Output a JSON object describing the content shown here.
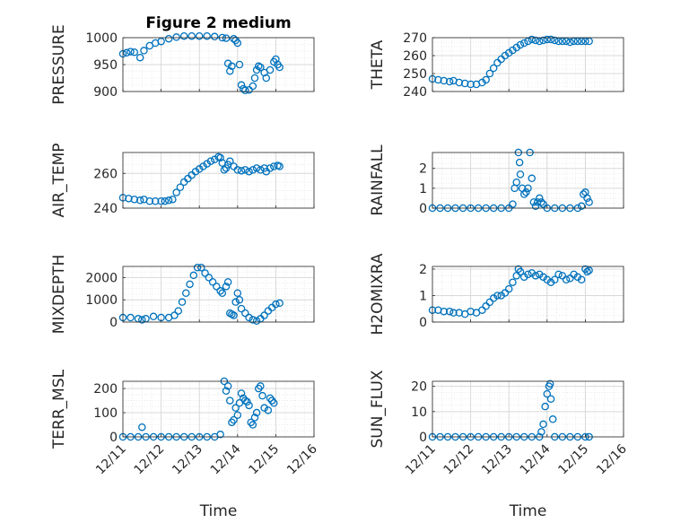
{
  "colors": {
    "marker": "#0072bd",
    "grid": "#d9d9d9",
    "axis": "#262626",
    "background": "#ffffff"
  },
  "chart_data": [
    {
      "id": "pressure",
      "type": "scatter",
      "title": "Figure 2 medium",
      "ylabel": "PRESSURE",
      "xlabel": "",
      "xlim": [
        "12/11",
        "12/16"
      ],
      "xticks": [
        "12/11",
        "12/12",
        "12/13",
        "12/14",
        "12/15",
        "12/16"
      ],
      "ylim": [
        900,
        1000
      ],
      "yticks": [
        900,
        950,
        1000
      ],
      "grid": true,
      "minor_grid": true,
      "points": [
        [
          0.0,
          970
        ],
        [
          0.1,
          972
        ],
        [
          0.2,
          974
        ],
        [
          0.3,
          973
        ],
        [
          0.45,
          963
        ],
        [
          0.55,
          976
        ],
        [
          0.7,
          985
        ],
        [
          0.85,
          990
        ],
        [
          1.0,
          993
        ],
        [
          1.2,
          998
        ],
        [
          1.4,
          1001
        ],
        [
          1.6,
          1003
        ],
        [
          1.8,
          1003
        ],
        [
          2.0,
          1003
        ],
        [
          2.2,
          1003
        ],
        [
          2.4,
          1002
        ],
        [
          2.6,
          1000
        ],
        [
          2.7,
          999
        ],
        [
          2.75,
          952
        ],
        [
          2.8,
          938
        ],
        [
          2.85,
          947
        ],
        [
          2.9,
          998
        ],
        [
          2.95,
          995
        ],
        [
          3.0,
          990
        ],
        [
          3.05,
          950
        ],
        [
          3.1,
          912
        ],
        [
          3.15,
          905
        ],
        [
          3.2,
          902
        ],
        [
          3.3,
          903
        ],
        [
          3.4,
          910
        ],
        [
          3.45,
          925
        ],
        [
          3.5,
          940
        ],
        [
          3.55,
          947
        ],
        [
          3.6,
          945
        ],
        [
          3.7,
          935
        ],
        [
          3.75,
          925
        ],
        [
          3.85,
          940
        ],
        [
          3.95,
          955
        ],
        [
          4.0,
          960
        ],
        [
          4.05,
          950
        ],
        [
          4.1,
          945
        ]
      ]
    },
    {
      "id": "theta",
      "type": "scatter",
      "ylabel": "THETA",
      "xlabel": "",
      "xlim": [
        "12/11",
        "12/16"
      ],
      "xticks": [
        "12/11",
        "12/12",
        "12/13",
        "12/14",
        "12/15",
        "12/16"
      ],
      "ylim": [
        240,
        270
      ],
      "yticks": [
        240,
        250,
        260,
        270
      ],
      "grid": true,
      "minor_grid": true,
      "points": [
        [
          0.0,
          247
        ],
        [
          0.15,
          246.5
        ],
        [
          0.3,
          246
        ],
        [
          0.45,
          245.5
        ],
        [
          0.55,
          246
        ],
        [
          0.7,
          245
        ],
        [
          0.85,
          244.5
        ],
        [
          1.0,
          244
        ],
        [
          1.15,
          244
        ],
        [
          1.3,
          245
        ],
        [
          1.4,
          246.5
        ],
        [
          1.5,
          250
        ],
        [
          1.6,
          253
        ],
        [
          1.7,
          256
        ],
        [
          1.8,
          258
        ],
        [
          1.9,
          260
        ],
        [
          2.0,
          261.5
        ],
        [
          2.1,
          263
        ],
        [
          2.2,
          264.5
        ],
        [
          2.3,
          266
        ],
        [
          2.4,
          267
        ],
        [
          2.5,
          268
        ],
        [
          2.6,
          269
        ],
        [
          2.7,
          268.5
        ],
        [
          2.8,
          268
        ],
        [
          2.9,
          268.5
        ],
        [
          3.0,
          269
        ],
        [
          3.1,
          269
        ],
        [
          3.2,
          268.5
        ],
        [
          3.3,
          268
        ],
        [
          3.4,
          268
        ],
        [
          3.5,
          268
        ],
        [
          3.6,
          267.5
        ],
        [
          3.7,
          268
        ],
        [
          3.8,
          268
        ],
        [
          3.9,
          268
        ],
        [
          4.0,
          268
        ],
        [
          4.1,
          268
        ]
      ]
    },
    {
      "id": "air_temp",
      "type": "scatter",
      "ylabel": "AIR_TEMP",
      "xlabel": "",
      "xlim": [
        "12/11",
        "12/16"
      ],
      "xticks": [
        "12/11",
        "12/12",
        "12/13",
        "12/14",
        "12/15",
        "12/16"
      ],
      "ylim": [
        240,
        272
      ],
      "yticks": [
        240,
        260
      ],
      "grid": true,
      "minor_grid": true,
      "points": [
        [
          0.0,
          246
        ],
        [
          0.15,
          245.5
        ],
        [
          0.3,
          245
        ],
        [
          0.45,
          244.5
        ],
        [
          0.55,
          245
        ],
        [
          0.7,
          244
        ],
        [
          0.85,
          244
        ],
        [
          1.0,
          244
        ],
        [
          1.1,
          244
        ],
        [
          1.2,
          244.5
        ],
        [
          1.3,
          245
        ],
        [
          1.4,
          249
        ],
        [
          1.5,
          252
        ],
        [
          1.6,
          255
        ],
        [
          1.7,
          257
        ],
        [
          1.8,
          259
        ],
        [
          1.9,
          261
        ],
        [
          2.0,
          262.5
        ],
        [
          2.1,
          264
        ],
        [
          2.2,
          265.5
        ],
        [
          2.3,
          267
        ],
        [
          2.4,
          268
        ],
        [
          2.5,
          269.5
        ],
        [
          2.55,
          269
        ],
        [
          2.6,
          266
        ],
        [
          2.65,
          262
        ],
        [
          2.7,
          263
        ],
        [
          2.75,
          265
        ],
        [
          2.8,
          267
        ],
        [
          2.9,
          264
        ],
        [
          3.0,
          262
        ],
        [
          3.1,
          261.5
        ],
        [
          3.2,
          262
        ],
        [
          3.3,
          261
        ],
        [
          3.4,
          262
        ],
        [
          3.5,
          263
        ],
        [
          3.6,
          262
        ],
        [
          3.7,
          263
        ],
        [
          3.75,
          261
        ],
        [
          3.85,
          263
        ],
        [
          3.95,
          264
        ],
        [
          4.05,
          264.5
        ],
        [
          4.1,
          264
        ]
      ]
    },
    {
      "id": "rainfall",
      "type": "scatter",
      "ylabel": "RAINFALL",
      "xlabel": "",
      "xlim": [
        "12/11",
        "12/16"
      ],
      "xticks": [
        "12/11",
        "12/12",
        "12/13",
        "12/14",
        "12/15",
        "12/16"
      ],
      "ylim": [
        0,
        2.8
      ],
      "yticks": [
        0,
        1,
        2
      ],
      "grid": true,
      "minor_grid": true,
      "points": [
        [
          0.0,
          0
        ],
        [
          0.2,
          0
        ],
        [
          0.4,
          0
        ],
        [
          0.6,
          0
        ],
        [
          0.8,
          0
        ],
        [
          1.0,
          0
        ],
        [
          1.2,
          0
        ],
        [
          1.4,
          0
        ],
        [
          1.6,
          0
        ],
        [
          1.8,
          0
        ],
        [
          2.0,
          0
        ],
        [
          2.1,
          0.2
        ],
        [
          2.15,
          1.0
        ],
        [
          2.2,
          1.3
        ],
        [
          2.25,
          2.8
        ],
        [
          2.28,
          2.3
        ],
        [
          2.3,
          1.7
        ],
        [
          2.35,
          1.0
        ],
        [
          2.4,
          0.7
        ],
        [
          2.45,
          0.8
        ],
        [
          2.5,
          1.0
        ],
        [
          2.55,
          2.8
        ],
        [
          2.6,
          1.5
        ],
        [
          2.65,
          0.3
        ],
        [
          2.7,
          0.1
        ],
        [
          2.75,
          0.3
        ],
        [
          2.8,
          0.5
        ],
        [
          2.85,
          0.3
        ],
        [
          2.9,
          0.2
        ],
        [
          3.0,
          0
        ],
        [
          3.2,
          0
        ],
        [
          3.4,
          0
        ],
        [
          3.6,
          0
        ],
        [
          3.8,
          0
        ],
        [
          3.9,
          0.1
        ],
        [
          3.95,
          0.7
        ],
        [
          4.0,
          0.8
        ],
        [
          4.05,
          0.5
        ],
        [
          4.1,
          0.3
        ]
      ]
    },
    {
      "id": "mixdepth",
      "type": "scatter",
      "ylabel": "MIXDEPTH",
      "xlabel": "",
      "xlim": [
        "12/11",
        "12/16"
      ],
      "xticks": [
        "12/11",
        "12/12",
        "12/13",
        "12/14",
        "12/15",
        "12/16"
      ],
      "ylim": [
        0,
        2500
      ],
      "yticks": [
        0,
        1000,
        2000
      ],
      "grid": true,
      "minor_grid": true,
      "points": [
        [
          0.0,
          200
        ],
        [
          0.2,
          200
        ],
        [
          0.4,
          150
        ],
        [
          0.5,
          100
        ],
        [
          0.6,
          150
        ],
        [
          0.8,
          250
        ],
        [
          1.0,
          200
        ],
        [
          1.2,
          200
        ],
        [
          1.35,
          300
        ],
        [
          1.45,
          500
        ],
        [
          1.55,
          900
        ],
        [
          1.65,
          1300
        ],
        [
          1.75,
          1700
        ],
        [
          1.85,
          2100
        ],
        [
          1.95,
          2450
        ],
        [
          2.05,
          2450
        ],
        [
          2.15,
          2200
        ],
        [
          2.25,
          2000
        ],
        [
          2.35,
          1800
        ],
        [
          2.45,
          1600
        ],
        [
          2.55,
          1400
        ],
        [
          2.6,
          1300
        ],
        [
          2.7,
          1600
        ],
        [
          2.75,
          1800
        ],
        [
          2.8,
          400
        ],
        [
          2.85,
          350
        ],
        [
          2.9,
          300
        ],
        [
          2.95,
          900
        ],
        [
          3.0,
          1300
        ],
        [
          3.05,
          1000
        ],
        [
          3.1,
          600
        ],
        [
          3.2,
          400
        ],
        [
          3.3,
          200
        ],
        [
          3.4,
          100
        ],
        [
          3.5,
          50
        ],
        [
          3.6,
          150
        ],
        [
          3.7,
          300
        ],
        [
          3.8,
          500
        ],
        [
          3.9,
          650
        ],
        [
          4.0,
          800
        ],
        [
          4.1,
          850
        ]
      ]
    },
    {
      "id": "h2omixra",
      "type": "scatter",
      "ylabel": "H2OMIXRA",
      "xlabel": "",
      "xlim": [
        "12/11",
        "12/16"
      ],
      "xticks": [
        "12/11",
        "12/12",
        "12/13",
        "12/14",
        "12/15",
        "12/16"
      ],
      "ylim": [
        0,
        2.1
      ],
      "yticks": [
        0,
        1,
        2
      ],
      "grid": true,
      "minor_grid": true,
      "points": [
        [
          0.0,
          0.45
        ],
        [
          0.15,
          0.45
        ],
        [
          0.3,
          0.4
        ],
        [
          0.45,
          0.4
        ],
        [
          0.55,
          0.35
        ],
        [
          0.7,
          0.35
        ],
        [
          0.85,
          0.3
        ],
        [
          1.0,
          0.4
        ],
        [
          1.15,
          0.35
        ],
        [
          1.3,
          0.45
        ],
        [
          1.4,
          0.6
        ],
        [
          1.5,
          0.75
        ],
        [
          1.6,
          0.9
        ],
        [
          1.7,
          1.0
        ],
        [
          1.8,
          1.0
        ],
        [
          1.9,
          1.1
        ],
        [
          2.0,
          1.25
        ],
        [
          2.1,
          1.5
        ],
        [
          2.2,
          1.75
        ],
        [
          2.25,
          2.0
        ],
        [
          2.3,
          1.9
        ],
        [
          2.4,
          1.7
        ],
        [
          2.5,
          1.8
        ],
        [
          2.6,
          1.85
        ],
        [
          2.7,
          1.75
        ],
        [
          2.8,
          1.8
        ],
        [
          2.9,
          1.7
        ],
        [
          3.0,
          1.6
        ],
        [
          3.1,
          1.5
        ],
        [
          3.2,
          1.6
        ],
        [
          3.3,
          1.8
        ],
        [
          3.4,
          1.75
        ],
        [
          3.5,
          1.6
        ],
        [
          3.6,
          1.65
        ],
        [
          3.7,
          1.8
        ],
        [
          3.8,
          1.7
        ],
        [
          3.9,
          1.6
        ],
        [
          4.0,
          2.0
        ],
        [
          4.05,
          1.9
        ],
        [
          4.1,
          1.95
        ]
      ]
    },
    {
      "id": "terr_msl",
      "type": "scatter",
      "ylabel": "TERR_MSL",
      "xlabel": "Time",
      "xlim": [
        "12/11",
        "12/16"
      ],
      "xticks": [
        "12/11",
        "12/12",
        "12/13",
        "12/14",
        "12/15",
        "12/16"
      ],
      "ylim": [
        0,
        230
      ],
      "yticks": [
        0,
        100,
        200
      ],
      "grid": true,
      "minor_grid": true,
      "points": [
        [
          0.0,
          0
        ],
        [
          0.2,
          0
        ],
        [
          0.4,
          0
        ],
        [
          0.5,
          40
        ],
        [
          0.6,
          0
        ],
        [
          0.8,
          0
        ],
        [
          1.0,
          0
        ],
        [
          1.2,
          0
        ],
        [
          1.4,
          0
        ],
        [
          1.6,
          0
        ],
        [
          1.8,
          0
        ],
        [
          2.0,
          0
        ],
        [
          2.2,
          0
        ],
        [
          2.4,
          0
        ],
        [
          2.55,
          10
        ],
        [
          2.65,
          230
        ],
        [
          2.7,
          190
        ],
        [
          2.75,
          210
        ],
        [
          2.8,
          150
        ],
        [
          2.85,
          60
        ],
        [
          2.9,
          70
        ],
        [
          2.95,
          120
        ],
        [
          3.0,
          90
        ],
        [
          3.05,
          140
        ],
        [
          3.1,
          180
        ],
        [
          3.15,
          160
        ],
        [
          3.2,
          150
        ],
        [
          3.25,
          145
        ],
        [
          3.3,
          130
        ],
        [
          3.35,
          60
        ],
        [
          3.4,
          50
        ],
        [
          3.45,
          80
        ],
        [
          3.5,
          100
        ],
        [
          3.55,
          200
        ],
        [
          3.6,
          210
        ],
        [
          3.65,
          170
        ],
        [
          3.7,
          120
        ],
        [
          3.8,
          110
        ],
        [
          3.85,
          160
        ],
        [
          3.9,
          150
        ],
        [
          3.95,
          140
        ]
      ]
    },
    {
      "id": "sun_flux",
      "type": "scatter",
      "ylabel": "SUN_FLUX",
      "xlabel": "Time",
      "xlim": [
        "12/11",
        "12/16"
      ],
      "xticks": [
        "12/11",
        "12/12",
        "12/13",
        "12/14",
        "12/15",
        "12/16"
      ],
      "ylim": [
        0,
        22
      ],
      "yticks": [
        0,
        10,
        20
      ],
      "grid": true,
      "minor_grid": true,
      "points": [
        [
          0.0,
          0
        ],
        [
          0.2,
          0
        ],
        [
          0.4,
          0
        ],
        [
          0.6,
          0
        ],
        [
          0.8,
          0
        ],
        [
          1.0,
          0
        ],
        [
          1.2,
          0
        ],
        [
          1.4,
          0
        ],
        [
          1.6,
          0
        ],
        [
          1.8,
          0
        ],
        [
          2.0,
          0
        ],
        [
          2.2,
          0
        ],
        [
          2.4,
          0
        ],
        [
          2.6,
          0
        ],
        [
          2.8,
          0
        ],
        [
          2.85,
          2
        ],
        [
          2.9,
          5
        ],
        [
          2.95,
          12
        ],
        [
          3.0,
          17
        ],
        [
          3.05,
          20
        ],
        [
          3.08,
          21
        ],
        [
          3.1,
          15
        ],
        [
          3.15,
          7
        ],
        [
          3.2,
          0
        ],
        [
          3.4,
          0
        ],
        [
          3.6,
          0
        ],
        [
          3.8,
          0
        ],
        [
          4.0,
          0
        ],
        [
          4.1,
          0
        ]
      ]
    }
  ]
}
